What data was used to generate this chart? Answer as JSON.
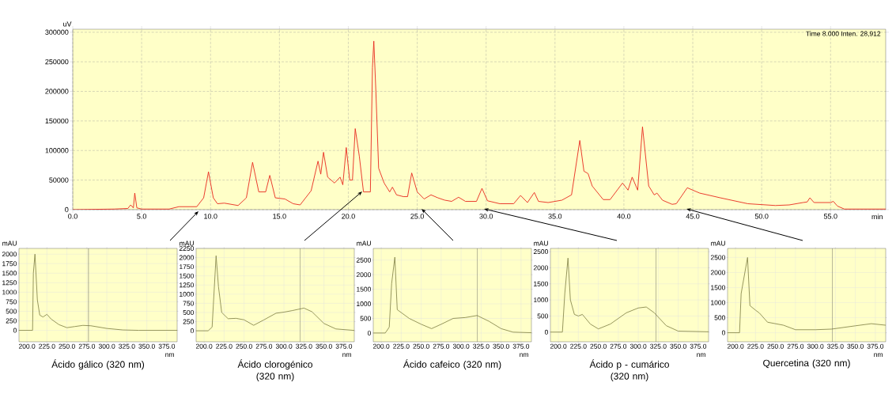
{
  "chart_data": [
    {
      "type": "line",
      "xlabel": "min",
      "ylabel": "uV",
      "xlim": [
        0,
        59
      ],
      "ylim": [
        0,
        305000
      ],
      "xticks": [
        {
          "value": 0,
          "label": "0.0"
        },
        {
          "value": 5,
          "label": "5.0"
        },
        {
          "value": 10,
          "label": "10.0"
        },
        {
          "value": 15,
          "label": "15.0"
        },
        {
          "value": 20,
          "label": "20.0"
        },
        {
          "value": 25,
          "label": "25.0"
        },
        {
          "value": 30,
          "label": "30.0"
        },
        {
          "value": 35,
          "label": "35.0"
        },
        {
          "value": 40,
          "label": "40.0"
        },
        {
          "value": 45,
          "label": "45.0"
        },
        {
          "value": 50,
          "label": "50.0"
        },
        {
          "value": 55,
          "label": "55.0"
        }
      ],
      "yticks": [
        0,
        50000,
        100000,
        150000,
        200000,
        250000,
        300000
      ],
      "grid": true,
      "annotations": [
        "Time 8.000 Inten. 28,912"
      ],
      "series": [
        {
          "color": "#e8281e",
          "x": [
            0,
            3,
            4,
            4.2,
            4.4,
            4.5,
            4.65,
            5,
            7,
            7.7,
            9,
            9.5,
            9.85,
            10.2,
            10.5,
            11,
            12,
            12.6,
            13.05,
            13.5,
            14,
            14.3,
            14.7,
            15.4,
            16,
            16.5,
            17.3,
            17.8,
            18,
            18.2,
            18.5,
            19,
            19.4,
            19.6,
            19.85,
            20.1,
            20.3,
            20.5,
            20.8,
            21.1,
            21.6,
            21.75,
            21.85,
            22,
            22.2,
            22.6,
            23,
            23.2,
            23.5,
            24,
            24.3,
            24.6,
            25,
            25.5,
            26,
            26.5,
            27,
            27.5,
            28,
            28.5,
            29.3,
            29.7,
            30.1,
            31,
            32,
            32.5,
            33,
            33.5,
            33.8,
            34.5,
            35.5,
            36.2,
            36.8,
            37.1,
            37.4,
            37.7,
            38.5,
            39,
            39.9,
            40.3,
            40.6,
            41,
            41.35,
            41.8,
            42.2,
            42.4,
            42.8,
            43.5,
            43.8,
            44.1,
            44.6,
            45.5,
            47,
            49,
            51,
            52,
            53,
            53.3,
            53.5,
            53.8,
            55,
            55.2,
            55.5,
            56,
            59
          ],
          "values": [
            0,
            1000,
            2000,
            8000,
            3000,
            28000,
            3000,
            1000,
            1000,
            5000,
            5000,
            20000,
            64000,
            20000,
            10000,
            11000,
            7000,
            20000,
            80000,
            30000,
            30000,
            58000,
            20000,
            18000,
            10000,
            8000,
            32000,
            82000,
            60000,
            97000,
            55000,
            45000,
            55000,
            42000,
            105000,
            50000,
            50000,
            137000,
            90000,
            30000,
            30000,
            240000,
            285000,
            200000,
            70000,
            45000,
            30000,
            38000,
            25000,
            22000,
            22000,
            62000,
            30000,
            18000,
            25000,
            20000,
            16000,
            14000,
            21000,
            14000,
            14000,
            36000,
            15000,
            10000,
            10000,
            24000,
            12000,
            29000,
            14000,
            12000,
            16000,
            25000,
            117000,
            65000,
            61000,
            40000,
            17000,
            17000,
            45000,
            33000,
            55000,
            33000,
            140000,
            40000,
            25000,
            28000,
            16000,
            9000,
            10000,
            20000,
            37000,
            28000,
            20000,
            10000,
            7000,
            8000,
            12000,
            13000,
            20000,
            12000,
            12000,
            14000,
            6000,
            1000,
            1000
          ]
        }
      ]
    },
    {
      "type": "line",
      "title": "Ácido gálico (320 nm)",
      "xlabel": "nm",
      "ylabel": "mAU",
      "xlim": [
        190,
        388
      ],
      "ylim": [
        -300,
        2150
      ],
      "xticks": [
        {
          "value": 200,
          "label": "200.0"
        },
        {
          "value": 225,
          "label": "225.0"
        },
        {
          "value": 250,
          "label": "250.0"
        },
        {
          "value": 275,
          "label": "275.0"
        },
        {
          "value": 300,
          "label": "300.0"
        },
        {
          "value": 325,
          "label": "325.0"
        },
        {
          "value": 350,
          "label": "350.0"
        },
        {
          "value": 375,
          "label": "375.0"
        }
      ],
      "yticks": [
        0,
        250,
        500,
        750,
        1000,
        1250,
        1500,
        1750,
        2000
      ],
      "grid": true,
      "ref_lines": [
        {
          "axis": "x",
          "value": 277,
          "color": "#555555"
        }
      ],
      "series": [
        {
          "color": "#8a8a50",
          "x": [
            190,
            207,
            208,
            210,
            213,
            216,
            220,
            225,
            230,
            240,
            250,
            260,
            270,
            280,
            300,
            320,
            340,
            388
          ],
          "values": [
            0,
            0,
            1500,
            2000,
            800,
            400,
            350,
            420,
            300,
            150,
            70,
            100,
            130,
            120,
            50,
            10,
            0,
            0
          ]
        }
      ]
    },
    {
      "type": "line",
      "title": "Ácido clorogénico (320 nm)",
      "xlabel": "nm",
      "ylabel": "mAU",
      "xlim": [
        190,
        388
      ],
      "ylim": [
        -300,
        2250
      ],
      "xticks": [
        {
          "value": 200,
          "label": "200.0"
        },
        {
          "value": 225,
          "label": "225.0"
        },
        {
          "value": 250,
          "label": "250.0"
        },
        {
          "value": 275,
          "label": "275.0"
        },
        {
          "value": 300,
          "label": "300.0"
        },
        {
          "value": 325,
          "label": "325.0"
        },
        {
          "value": 350,
          "label": "350.0"
        },
        {
          "value": 375,
          "label": "375.0"
        }
      ],
      "yticks": [
        0,
        250,
        500,
        750,
        1000,
        1250,
        1500,
        1750,
        2000,
        2250
      ],
      "grid": true,
      "ref_lines": [
        {
          "axis": "x",
          "value": 320,
          "color": "#555555"
        }
      ],
      "series": [
        {
          "color": "#8a8a50",
          "x": [
            190,
            205,
            210,
            215,
            218,
            222,
            230,
            240,
            250,
            262,
            275,
            290,
            300,
            310,
            325,
            335,
            350,
            365,
            388
          ],
          "values": [
            0,
            0,
            100,
            2050,
            1200,
            500,
            330,
            340,
            300,
            150,
            300,
            480,
            510,
            550,
            620,
            520,
            200,
            50,
            10
          ]
        }
      ]
    },
    {
      "type": "line",
      "title": "Ácido cafeico (320 nm)",
      "xlabel": "nm",
      "ylabel": "mAU",
      "xlim": [
        190,
        388
      ],
      "ylim": [
        -300,
        2900
      ],
      "xticks": [
        {
          "value": 200,
          "label": "200.0"
        },
        {
          "value": 225,
          "label": "225.0"
        },
        {
          "value": 250,
          "label": "250.0"
        },
        {
          "value": 275,
          "label": "275.0"
        },
        {
          "value": 300,
          "label": "300.0"
        },
        {
          "value": 325,
          "label": "325.0"
        },
        {
          "value": 350,
          "label": "350.0"
        },
        {
          "value": 375,
          "label": "375.0"
        }
      ],
      "yticks": [
        0,
        500,
        1000,
        1500,
        2000,
        2500
      ],
      "grid": true,
      "ref_lines": [
        {
          "axis": "x",
          "value": 320,
          "color": "#555555"
        }
      ],
      "series": [
        {
          "color": "#8a8a50",
          "x": [
            190,
            205,
            210,
            213,
            217,
            220,
            225,
            235,
            250,
            263,
            275,
            290,
            305,
            320,
            335,
            350,
            365,
            388
          ],
          "values": [
            0,
            0,
            200,
            1700,
            2600,
            800,
            700,
            500,
            300,
            150,
            300,
            500,
            530,
            600,
            400,
            150,
            30,
            10
          ]
        }
      ]
    },
    {
      "type": "line",
      "title": "Ácido p - cumárico (320 nm)",
      "xlabel": "nm",
      "ylabel": "mAU",
      "xlim": [
        190,
        388
      ],
      "ylim": [
        -300,
        2600
      ],
      "xticks": [
        {
          "value": 200,
          "label": "200.0"
        },
        {
          "value": 225,
          "label": "225.0"
        },
        {
          "value": 250,
          "label": "250.0"
        },
        {
          "value": 275,
          "label": "275.0"
        },
        {
          "value": 300,
          "label": "300.0"
        },
        {
          "value": 325,
          "label": "325.0"
        },
        {
          "value": 350,
          "label": "350.0"
        },
        {
          "value": 375,
          "label": "375.0"
        }
      ],
      "yticks": [
        0,
        500,
        1000,
        1500,
        2000,
        2500
      ],
      "grid": true,
      "ref_lines": [
        {
          "axis": "x",
          "value": 322,
          "color": "#555555"
        }
      ],
      "series": [
        {
          "color": "#8a8a50",
          "x": [
            190,
            205,
            208,
            212,
            215,
            220,
            225,
            230,
            240,
            250,
            265,
            285,
            300,
            310,
            320,
            335,
            350,
            388
          ],
          "values": [
            0,
            0,
            1200,
            2300,
            1000,
            550,
            500,
            550,
            250,
            100,
            250,
            600,
            750,
            780,
            600,
            200,
            30,
            10
          ]
        }
      ]
    },
    {
      "type": "line",
      "title": "Quercetina (320 nm)",
      "xlabel": "nm",
      "ylabel": "mAU",
      "xlim": [
        190,
        388
      ],
      "ylim": [
        -300,
        2800
      ],
      "xticks": [
        {
          "value": 200,
          "label": "200.0"
        },
        {
          "value": 225,
          "label": "225.0"
        },
        {
          "value": 250,
          "label": "250.0"
        },
        {
          "value": 275,
          "label": "275.0"
        },
        {
          "value": 300,
          "label": "300.0"
        },
        {
          "value": 325,
          "label": "325.0"
        },
        {
          "value": 350,
          "label": "350.0"
        },
        {
          "value": 375,
          "label": "375.0"
        }
      ],
      "yticks": [
        0,
        500,
        1000,
        1500,
        2000,
        2500
      ],
      "grid": true,
      "ref_lines": [
        {
          "axis": "x",
          "value": 321,
          "color": "#555555"
        }
      ],
      "series": [
        {
          "color": "#8a8a50",
          "x": [
            190,
            205,
            207,
            215,
            218,
            225,
            230,
            240,
            250,
            260,
            275,
            300,
            320,
            350,
            370,
            388
          ],
          "values": [
            0,
            0,
            1300,
            2500,
            900,
            750,
            650,
            350,
            300,
            250,
            100,
            100,
            120,
            230,
            300,
            250
          ]
        }
      ]
    }
  ]
}
